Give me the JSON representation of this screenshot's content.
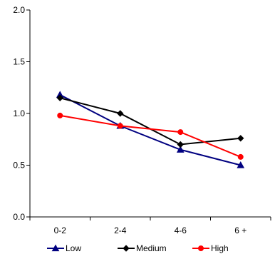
{
  "chart_data": {
    "type": "line",
    "categories": [
      "0-2",
      "2-4",
      "4-6",
      "6 +"
    ],
    "ylim": [
      0.0,
      2.0
    ],
    "yticks": [
      "0.0",
      "0.5",
      "1.0",
      "1.5",
      "2.0"
    ],
    "ytick_values": [
      0.0,
      0.5,
      1.0,
      1.5,
      2.0
    ],
    "grid": false,
    "legend_position": "bottom",
    "series": [
      {
        "name": "Low",
        "values": [
          1.18,
          0.88,
          0.65,
          0.5
        ],
        "color": "#000080",
        "marker": "triangle"
      },
      {
        "name": "Medium",
        "values": [
          1.15,
          1.0,
          0.7,
          0.76
        ],
        "color": "#000000",
        "marker": "diamond"
      },
      {
        "name": "High",
        "values": [
          0.98,
          0.88,
          0.82,
          0.58
        ],
        "color": "#ff0000",
        "marker": "circle"
      }
    ]
  }
}
